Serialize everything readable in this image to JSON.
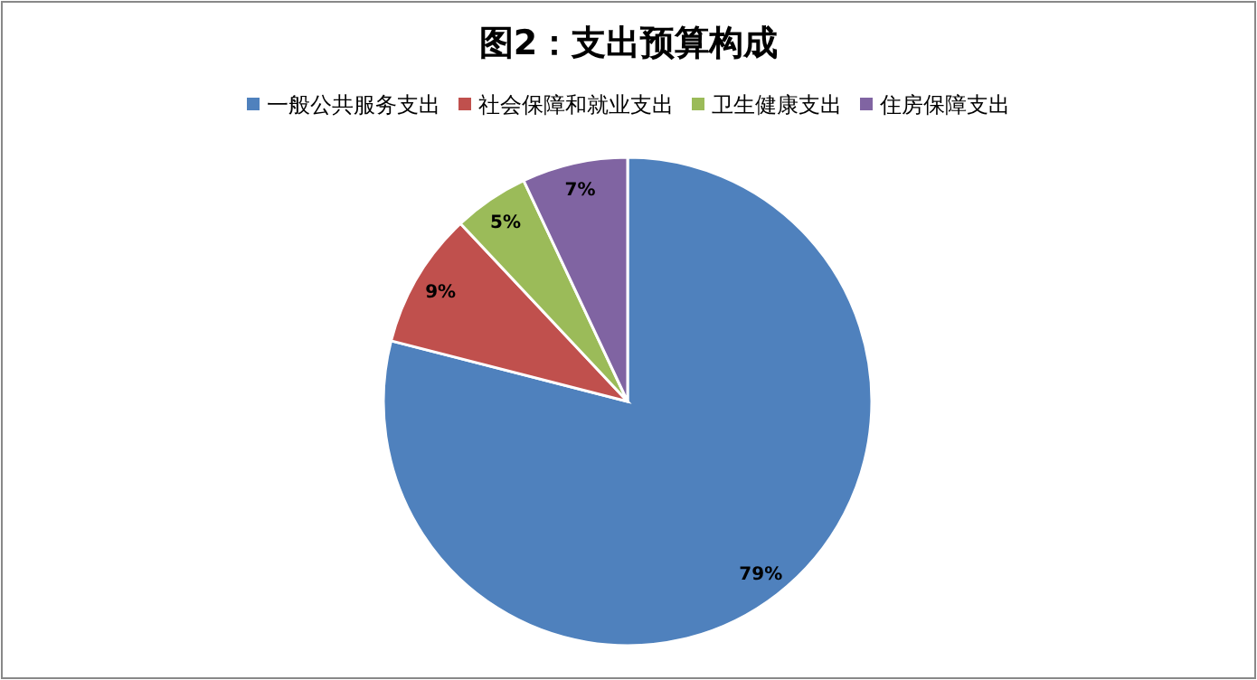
{
  "chart_data": {
    "type": "pie",
    "title": "图2：支出预算构成",
    "categories": [
      "一般公共服务支出",
      "社会保障和就业支出",
      "卫生健康支出",
      "住房保障支出"
    ],
    "values": [
      79,
      9,
      5,
      7
    ],
    "colors": [
      "#4f81bd",
      "#c0504d",
      "#9bbb59",
      "#8064a2"
    ],
    "value_labels": [
      "79%",
      "9%",
      "5%",
      "7%"
    ],
    "legend": "top"
  }
}
